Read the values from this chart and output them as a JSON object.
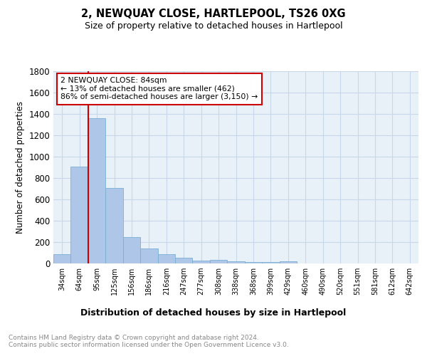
{
  "title": "2, NEWQUAY CLOSE, HARTLEPOOL, TS26 0XG",
  "subtitle": "Size of property relative to detached houses in Hartlepool",
  "xlabel": "Distribution of detached houses by size in Hartlepool",
  "ylabel": "Number of detached properties",
  "categories": [
    "34sqm",
    "64sqm",
    "95sqm",
    "125sqm",
    "156sqm",
    "186sqm",
    "216sqm",
    "247sqm",
    "277sqm",
    "308sqm",
    "338sqm",
    "368sqm",
    "399sqm",
    "429sqm",
    "460sqm",
    "490sqm",
    "520sqm",
    "551sqm",
    "581sqm",
    "612sqm",
    "642sqm"
  ],
  "values": [
    90,
    910,
    1360,
    710,
    250,
    140,
    85,
    55,
    28,
    32,
    18,
    14,
    12,
    20,
    0,
    0,
    0,
    0,
    0,
    0,
    0
  ],
  "bar_color": "#aec6e8",
  "bar_edge_color": "#7aafd4",
  "grid_color": "#c8d8ea",
  "background_color": "#e8f0f8",
  "annotation_title": "2 NEWQUAY CLOSE: 84sqm",
  "annotation_line1": "← 13% of detached houses are smaller (462)",
  "annotation_line2": "86% of semi-detached houses are larger (3,150) →",
  "annotation_box_color": "#ffffff",
  "annotation_box_edge": "#cc0000",
  "vline_color": "#cc0000",
  "vline_x_index": 2,
  "footer": "Contains HM Land Registry data © Crown copyright and database right 2024.\nContains public sector information licensed under the Open Government Licence v3.0.",
  "ylim": [
    0,
    1800
  ],
  "yticks": [
    0,
    200,
    400,
    600,
    800,
    1000,
    1200,
    1400,
    1600,
    1800
  ]
}
